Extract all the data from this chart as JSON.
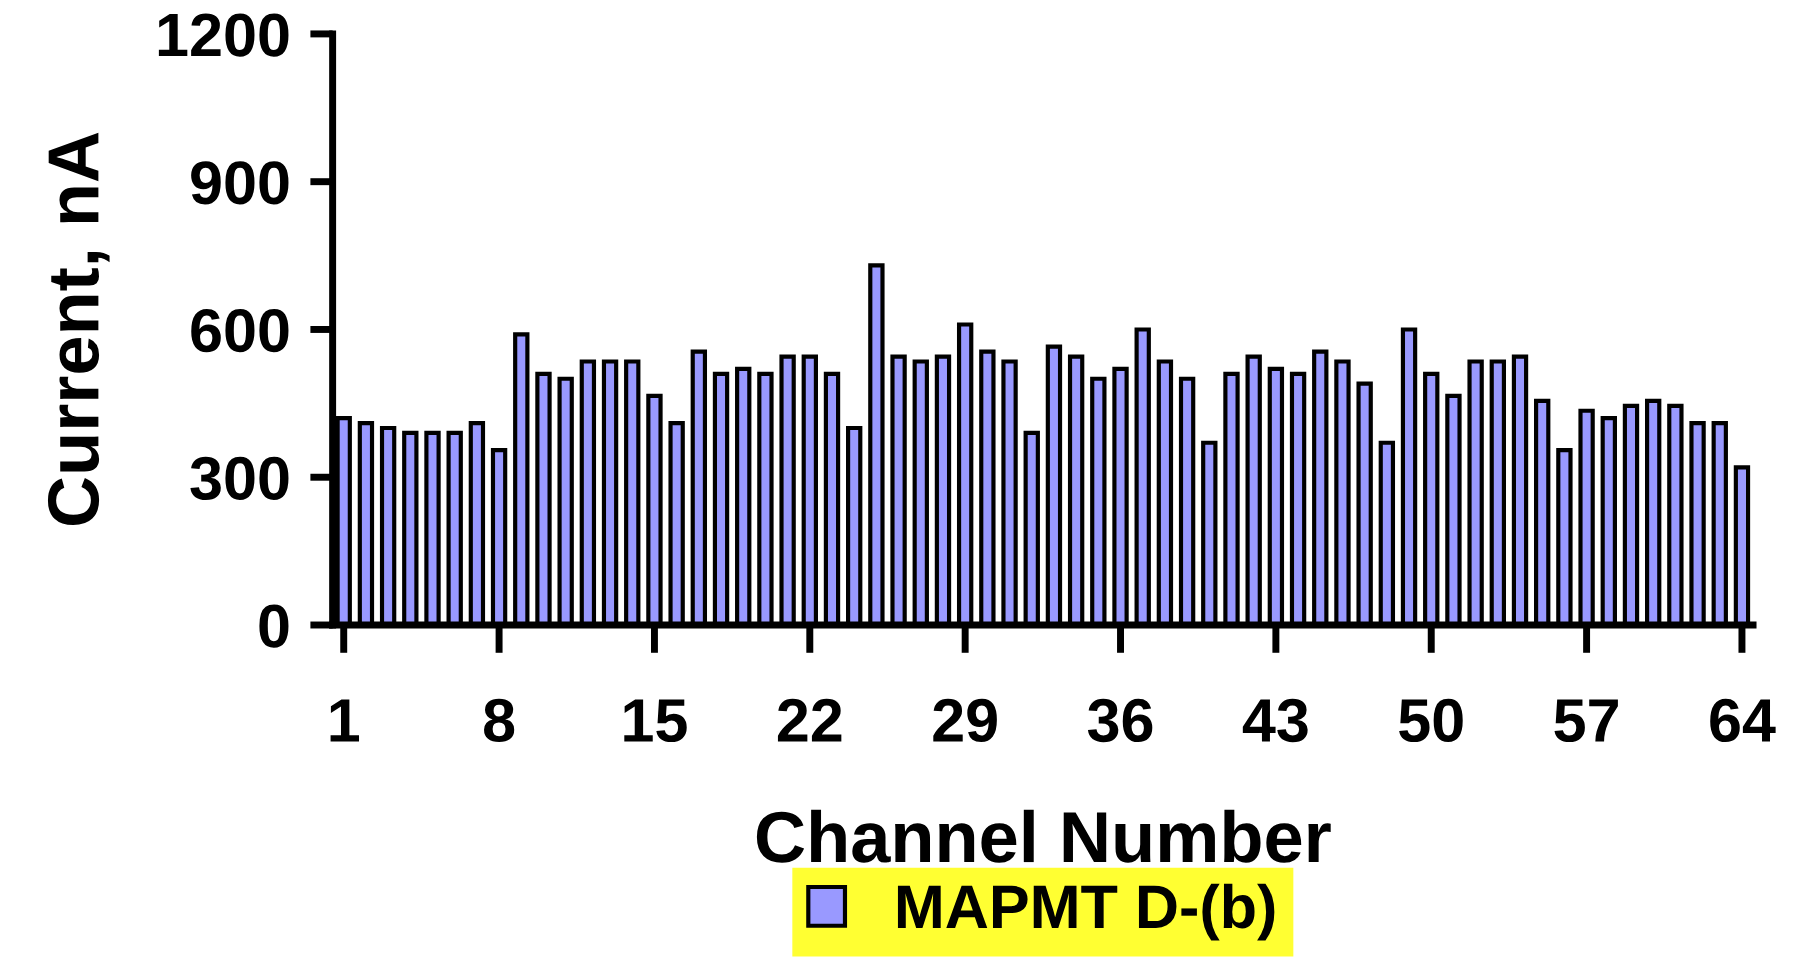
{
  "chart_data": {
    "type": "bar",
    "xlabel": "Channel Number",
    "ylabel": "Current, nA",
    "categories": [
      "1",
      null,
      null,
      null,
      null,
      null,
      null,
      "8",
      null,
      null,
      null,
      null,
      null,
      null,
      "15",
      null,
      null,
      null,
      null,
      null,
      null,
      "22",
      null,
      null,
      null,
      null,
      null,
      null,
      "29",
      null,
      null,
      null,
      null,
      null,
      null,
      "36",
      null,
      null,
      null,
      null,
      null,
      null,
      "43",
      null,
      null,
      null,
      null,
      null,
      null,
      "50",
      null,
      null,
      null,
      null,
      null,
      null,
      "57",
      null,
      null,
      null,
      null,
      null,
      null,
      "64"
    ],
    "series": [
      {
        "name": "MAPMT D-(b)",
        "color": "#9999ff",
        "values": [
          420,
          410,
          400,
          390,
          390,
          390,
          410,
          355,
          590,
          510,
          500,
          535,
          535,
          535,
          465,
          410,
          555,
          510,
          520,
          510,
          545,
          545,
          510,
          400,
          730,
          545,
          535,
          545,
          610,
          555,
          535,
          390,
          565,
          545,
          500,
          520,
          600,
          535,
          500,
          370,
          510,
          545,
          520,
          510,
          555,
          535,
          490,
          370,
          600,
          510,
          465,
          535,
          535,
          545,
          455,
          355,
          435,
          420,
          445,
          455,
          445,
          410,
          410,
          320
        ]
      }
    ],
    "ylim": [
      0,
      1200
    ],
    "yticks": [
      0,
      300,
      600,
      900,
      1200
    ],
    "grid": false,
    "legend": "bottom"
  }
}
